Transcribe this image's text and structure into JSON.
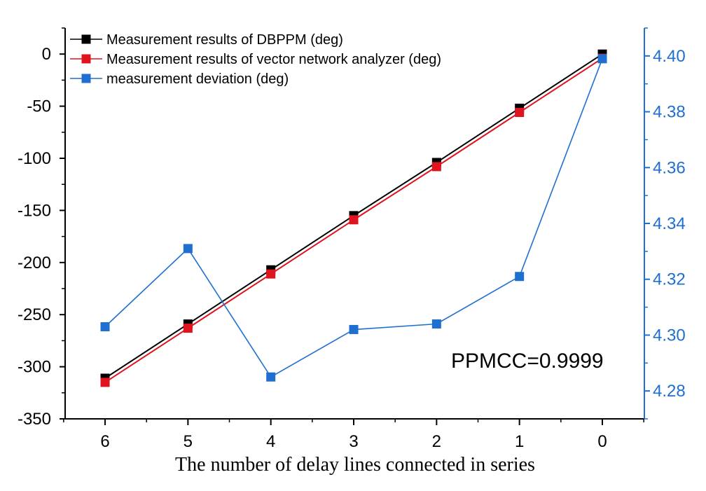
{
  "chart_data": {
    "type": "line",
    "x": [
      6,
      5,
      4,
      3,
      2,
      1,
      0
    ],
    "xlabel": "The number of delay lines connected in series",
    "ylabel": "",
    "y2label": "",
    "ylim": [
      -350,
      25
    ],
    "y2lim": [
      4.27,
      4.41
    ],
    "yticks": [
      0,
      -50,
      -100,
      -150,
      -200,
      -250,
      -300,
      -350
    ],
    "y2ticks": [
      "4.28",
      "4.30",
      "4.32",
      "4.34",
      "4.36",
      "4.38",
      "4.40"
    ],
    "xticks": [
      "6",
      "5",
      "4",
      "3",
      "2",
      "1",
      "0"
    ],
    "legend_position": "top-left",
    "series": [
      {
        "name": "Measurement results of DBPPM (deg)",
        "axis": "left",
        "color": "#000000",
        "values": [
          -311,
          -259,
          -207,
          -155,
          -104,
          -52,
          0
        ]
      },
      {
        "name": "Measurement results of vector network analyzer (deg)",
        "axis": "left",
        "color": "#e0141e",
        "values": [
          -315,
          -263,
          -211,
          -159,
          -108,
          -56,
          -4
        ]
      },
      {
        "name": "measurement deviation (deg)",
        "axis": "right",
        "color": "#1f6fd1",
        "values": [
          4.303,
          4.331,
          4.285,
          4.302,
          4.304,
          4.321,
          4.399
        ]
      }
    ],
    "annotation": "PPMCC=0.9999",
    "colors": {
      "axis_left": "#000000",
      "axis_right": "#1f6fd1"
    }
  }
}
